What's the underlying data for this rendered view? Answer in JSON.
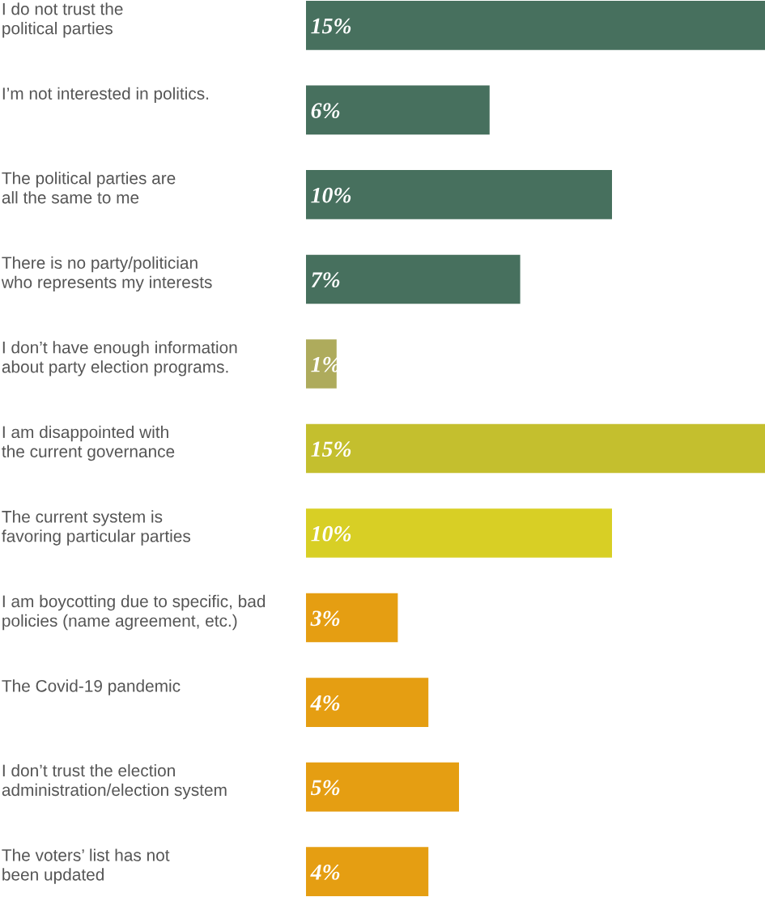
{
  "chart_data": {
    "type": "bar",
    "orientation": "horizontal",
    "categories": [
      "I do not trust the\npolitical parties",
      "I’m not interested in politics.",
      "The political parties are\nall the same to me",
      "There is no party/politician\nwho represents my interests",
      "I don’t have enough information\nabout party election programs.",
      "I am disappointed with\nthe current governance",
      "The current system is\nfavoring particular parties",
      "I am boycotting due to specific, bad\npolicies (name agreement, etc.)",
      "The Covid-19 pandemic",
      "I don’t trust the election\nadministration/election system",
      "The voters’ list has not\nbeen updated"
    ],
    "values": [
      15,
      6,
      10,
      7,
      1,
      15,
      10,
      3,
      4,
      5,
      4
    ],
    "value_labels": [
      "15%",
      "6%",
      "10%",
      "7%",
      "1%",
      "15%",
      "10%",
      "3%",
      "4%",
      "5%",
      "4%"
    ],
    "colors": [
      "#47705e",
      "#47705e",
      "#47705e",
      "#47705e",
      "#aeab5c",
      "#c4bf2e",
      "#d8cf25",
      "#e59e12",
      "#e59e12",
      "#e59e12",
      "#e59e12"
    ],
    "xlim": [
      0,
      15
    ],
    "tick_labels": "y"
  }
}
